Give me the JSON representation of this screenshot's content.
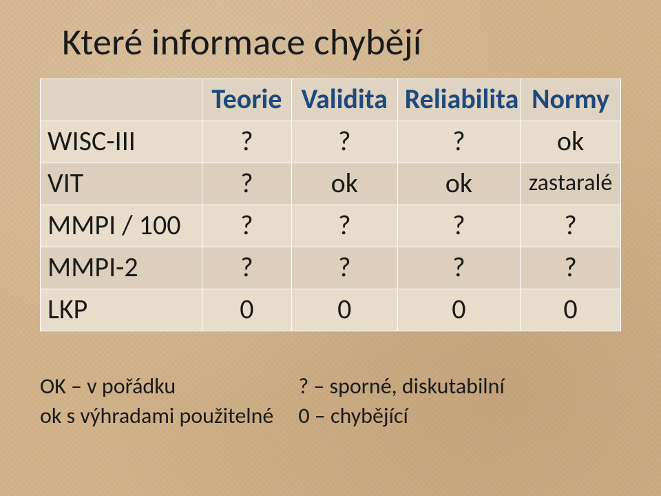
{
  "slide": {
    "title": "Které informace chybějí",
    "background_base": "#d2b48c"
  },
  "table": {
    "type": "table",
    "header_bg": "#dfd3c2",
    "header_text_color": "#1f497d",
    "row_bg": "#e8ddcb",
    "row_alt_bg": "#dcd0bd",
    "border_color": "#ffffff",
    "cell_fontsize_pt": 30,
    "columns": [
      "",
      "Teorie",
      "Validita",
      "Reliabilita",
      "Normy"
    ],
    "col_widths_pct": [
      29,
      16,
      19,
      22,
      18
    ],
    "rows": [
      {
        "label": "WISC-III",
        "cells": [
          "?",
          "?",
          "?",
          "ok"
        ]
      },
      {
        "label": "VIT",
        "cells": [
          "?",
          "ok",
          "ok",
          "zastaralé"
        ],
        "small_last": true
      },
      {
        "label": "MMPI / 100",
        "cells": [
          "?",
          "?",
          "?",
          "?"
        ]
      },
      {
        "label": "MMPI-2",
        "cells": [
          "?",
          "?",
          "?",
          "?"
        ]
      },
      {
        "label": "LKP",
        "cells": [
          "0",
          "0",
          "0",
          "0"
        ]
      }
    ]
  },
  "legend": {
    "left": {
      "line1": "OK – v pořádku",
      "line2": "ok s výhradami použitelné"
    },
    "right": {
      "line1": "? – sporné, diskutabilní",
      "line2": "0 – chybějící"
    },
    "fontsize_pt": 24,
    "text_color": "#1a1a1a"
  }
}
